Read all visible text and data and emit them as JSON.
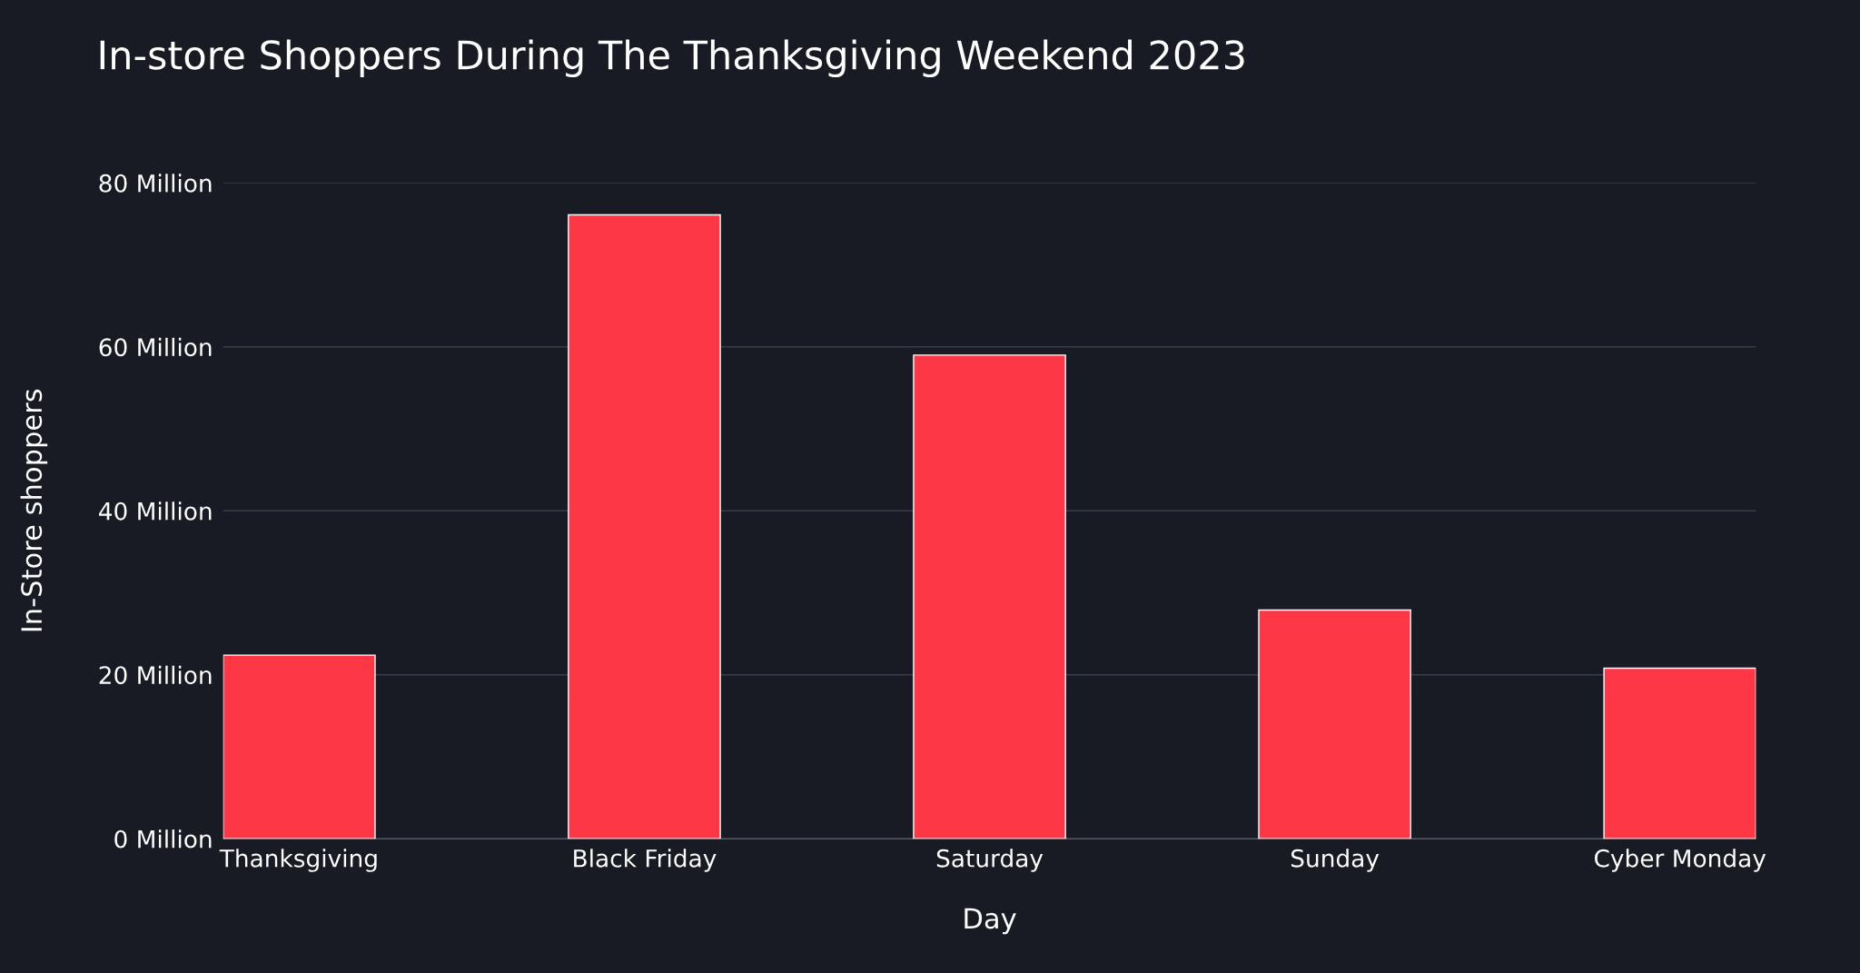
{
  "chart_data": {
    "type": "bar",
    "title": "In-store Shoppers During The Thanksgiving Weekend 2023",
    "xlabel": "Day",
    "ylabel": "In-Store shoppers",
    "categories": [
      "Thanksgiving",
      "Black Friday",
      "Saturday",
      "Sunday",
      "Cyber Monday"
    ],
    "values": [
      22.4,
      76.1,
      59.0,
      27.9,
      20.8
    ],
    "color": "#fe3747",
    "ylim": [
      0,
      80
    ],
    "yticks": [
      {
        "value": 0,
        "label": "0 Million"
      },
      {
        "value": 20,
        "label": "20 Million"
      },
      {
        "value": 40,
        "label": "40 Million"
      },
      {
        "value": 60,
        "label": "60 Million"
      },
      {
        "value": 80,
        "label": "80 Million"
      }
    ],
    "grid": "y",
    "legend": false
  }
}
